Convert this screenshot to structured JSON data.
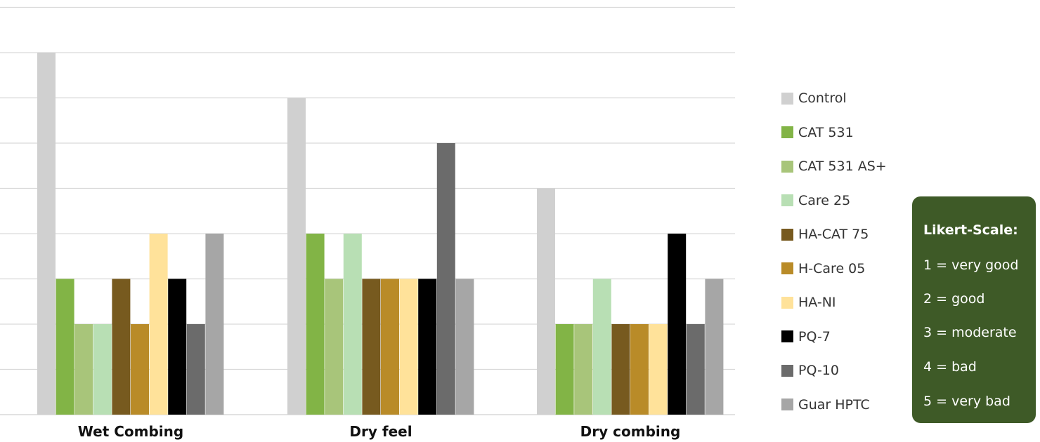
{
  "chart_data": {
    "type": "bar",
    "categories": [
      "Wet Combing",
      "Dry feel",
      "Dry combing"
    ],
    "series": [
      {
        "name": "Control",
        "color": "#d0d0d0",
        "values": [
          8,
          7,
          5
        ]
      },
      {
        "name": "CAT 531",
        "color": "#82b446",
        "values": [
          3,
          4,
          2
        ]
      },
      {
        "name": "CAT 531 AS+",
        "color": "#a8c57a",
        "values": [
          2,
          3,
          2
        ]
      },
      {
        "name": "Care 25",
        "color": "#b8dfb4",
        "values": [
          2,
          4,
          3
        ]
      },
      {
        "name": "HA-CAT 75",
        "color": "#775a1f",
        "values": [
          3,
          3,
          2
        ]
      },
      {
        "name": "H-Care 05",
        "color": "#b98b28",
        "values": [
          2,
          3,
          2
        ]
      },
      {
        "name": "HA-NI",
        "color": "#ffe29a",
        "values": [
          4,
          3,
          2
        ]
      },
      {
        "name": "PQ-7",
        "color": "#000000",
        "values": [
          3,
          3,
          4
        ]
      },
      {
        "name": "PQ-10",
        "color": "#6b6b6b",
        "values": [
          2,
          6,
          2
        ]
      },
      {
        "name": "Guar HPTC",
        "color": "#a6a6a6",
        "values": [
          4,
          3,
          3
        ]
      }
    ],
    "ylim": [
      0,
      9
    ],
    "grid": true,
    "legend_position": "right",
    "title": "",
    "xlabel": "",
    "ylabel": ""
  },
  "likert": {
    "title": "Likert-Scale:",
    "items": [
      "1 = very good",
      "2 = good",
      "3 = moderate",
      "4 = bad",
      "5 = very bad"
    ]
  }
}
